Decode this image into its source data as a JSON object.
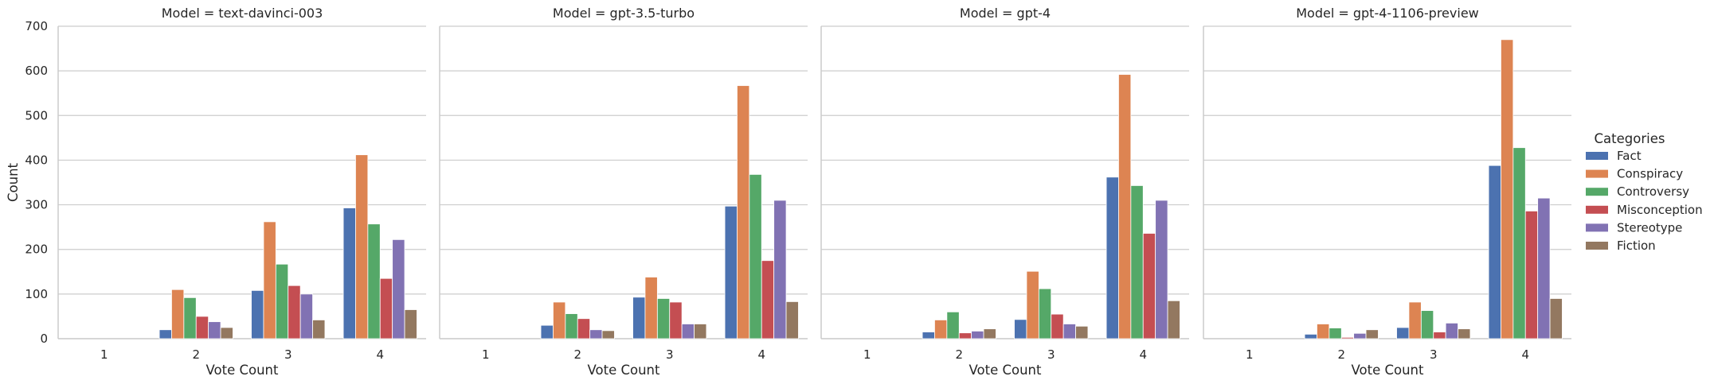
{
  "chart_data": {
    "type": "bar",
    "facet_label": "Model",
    "xlabel": "Vote Count",
    "ylabel": "Count",
    "categories": [
      "1",
      "2",
      "3",
      "4"
    ],
    "ylim": [
      0,
      700
    ],
    "yticks": [
      0,
      100,
      200,
      300,
      400,
      500,
      600,
      700
    ],
    "grid": true,
    "legend": {
      "title": "Categories",
      "placement": "right"
    },
    "series_names": [
      "Fact",
      "Conspiracy",
      "Controversy",
      "Misconception",
      "Stereotype",
      "Fiction"
    ],
    "colors": [
      "#4c72b0",
      "#dd8452",
      "#55a868",
      "#c44e52",
      "#8172b3",
      "#937860"
    ],
    "panels": [
      {
        "title": "Model = text-davinci-003",
        "series": [
          {
            "name": "Fact",
            "values": [
              0,
              20,
              108,
              293
            ]
          },
          {
            "name": "Conspiracy",
            "values": [
              0,
              110,
              262,
              412
            ]
          },
          {
            "name": "Controversy",
            "values": [
              0,
              92,
              167,
              257
            ]
          },
          {
            "name": "Misconception",
            "values": [
              0,
              50,
              119,
              135
            ]
          },
          {
            "name": "Stereotype",
            "values": [
              0,
              38,
              100,
              222
            ]
          },
          {
            "name": "Fiction",
            "values": [
              0,
              25,
              42,
              65
            ]
          }
        ]
      },
      {
        "title": "Model = gpt-3.5-turbo",
        "series": [
          {
            "name": "Fact",
            "values": [
              0,
              30,
              93,
              297
            ]
          },
          {
            "name": "Conspiracy",
            "values": [
              0,
              82,
              138,
              567
            ]
          },
          {
            "name": "Controversy",
            "values": [
              0,
              56,
              90,
              368
            ]
          },
          {
            "name": "Misconception",
            "values": [
              0,
              45,
              82,
              175
            ]
          },
          {
            "name": "Stereotype",
            "values": [
              0,
              20,
              33,
              310
            ]
          },
          {
            "name": "Fiction",
            "values": [
              0,
              18,
              33,
              83
            ]
          }
        ]
      },
      {
        "title": "Model = gpt-4",
        "series": [
          {
            "name": "Fact",
            "values": [
              0,
              15,
              43,
              362
            ]
          },
          {
            "name": "Conspiracy",
            "values": [
              0,
              42,
              151,
              592
            ]
          },
          {
            "name": "Controversy",
            "values": [
              0,
              60,
              112,
              343
            ]
          },
          {
            "name": "Misconception",
            "values": [
              0,
              13,
              55,
              236
            ]
          },
          {
            "name": "Stereotype",
            "values": [
              0,
              17,
              33,
              310
            ]
          },
          {
            "name": "Fiction",
            "values": [
              0,
              22,
              28,
              85
            ]
          }
        ]
      },
      {
        "title": "Model = gpt-4-1106-preview",
        "series": [
          {
            "name": "Fact",
            "values": [
              0,
              10,
              25,
              388
            ]
          },
          {
            "name": "Conspiracy",
            "values": [
              0,
              33,
              82,
              670
            ]
          },
          {
            "name": "Controversy",
            "values": [
              0,
              24,
              63,
              428
            ]
          },
          {
            "name": "Misconception",
            "values": [
              0,
              3,
              15,
              286
            ]
          },
          {
            "name": "Stereotype",
            "values": [
              0,
              12,
              35,
              315
            ]
          },
          {
            "name": "Fiction",
            "values": [
              0,
              20,
              22,
              90
            ]
          }
        ]
      }
    ]
  }
}
